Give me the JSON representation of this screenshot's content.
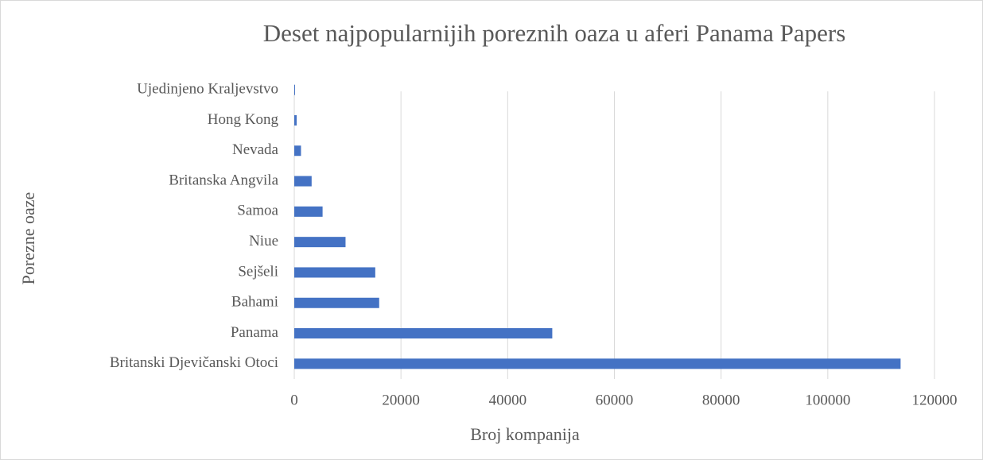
{
  "chart_data": {
    "type": "hbar",
    "title": "Deset najpopularnijih poreznih oaza u aferi Panama Papers",
    "x_label": "Broj kompanija",
    "y_label": "Porezne oaze",
    "categories": [
      "Britanski Djevičanski Otoci",
      "Panama",
      "Bahami",
      "Sejšeli",
      "Niue",
      "Samoa",
      "Britanska Angvila",
      "Nevada",
      "Hong Kong",
      "Ujedinjeno Kraljevstvo"
    ],
    "values": [
      113648,
      48360,
      15915,
      15182,
      9611,
      5307,
      3253,
      1260,
      452,
      148
    ],
    "color": "#4472c4",
    "xlim": [
      0,
      120000
    ],
    "xticks": [
      0,
      20000,
      40000,
      60000,
      80000,
      100000,
      120000
    ],
    "grid": true
  }
}
